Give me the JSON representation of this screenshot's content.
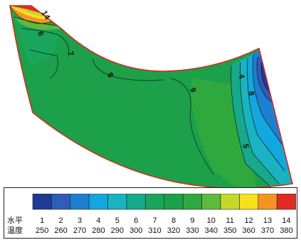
{
  "chart_data": {
    "type": "heatmap",
    "title": "",
    "legend": {
      "row1_label": "水平",
      "row2_label": "温度",
      "levels": [
        "1",
        "2",
        "3",
        "4",
        "5",
        "6",
        "7",
        "8",
        "9",
        "10",
        "11",
        "12",
        "13",
        "14"
      ],
      "temperatures": [
        "250",
        "260",
        "270",
        "280",
        "290",
        "300",
        "310",
        "320",
        "330",
        "340",
        "350",
        "360",
        "370",
        "380"
      ],
      "colors": [
        "#1f3a93",
        "#2e5cb8",
        "#1d7fd1",
        "#12a7dd",
        "#19b3c1",
        "#16a98b",
        "#19a55a",
        "#1ca04a",
        "#2fa93d",
        "#5dbb3c",
        "#c4d82a",
        "#f6e11c",
        "#f39422",
        "#e02a24"
      ]
    },
    "contour_labels": [
      "14",
      "6",
      "7",
      "8",
      "9",
      "4",
      "8",
      "5"
    ]
  }
}
